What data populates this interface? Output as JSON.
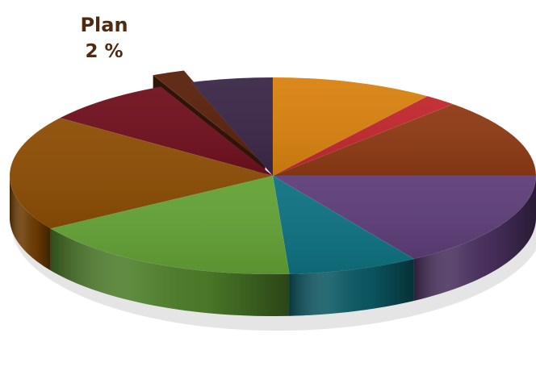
{
  "chart_data": {
    "type": "pie",
    "style": "3d-exploded",
    "title": "",
    "slices": [
      {
        "label": "",
        "value": 10,
        "color": "#D9820F"
      },
      {
        "label": "",
        "value": 2,
        "color": "#C1272D"
      },
      {
        "label": "",
        "value": 13,
        "color": "#8E3A13"
      },
      {
        "label": "",
        "value": 16,
        "color": "#5E3E78"
      },
      {
        "label": "",
        "value": 8,
        "color": "#0E7280"
      },
      {
        "label": "",
        "value": 17,
        "color": "#63A235"
      },
      {
        "label": "",
        "value": 19,
        "color": "#8C4D04"
      },
      {
        "label": "",
        "value": 8,
        "color": "#70101E"
      },
      {
        "label": "Plan",
        "value": 2,
        "color": "#5A220C",
        "exploded": true
      },
      {
        "label": "",
        "value": 5,
        "color": "#3B2748"
      }
    ],
    "data_labels": [
      {
        "slice": "Plan",
        "name": "Plan",
        "value_text": "2 %"
      }
    ]
  }
}
